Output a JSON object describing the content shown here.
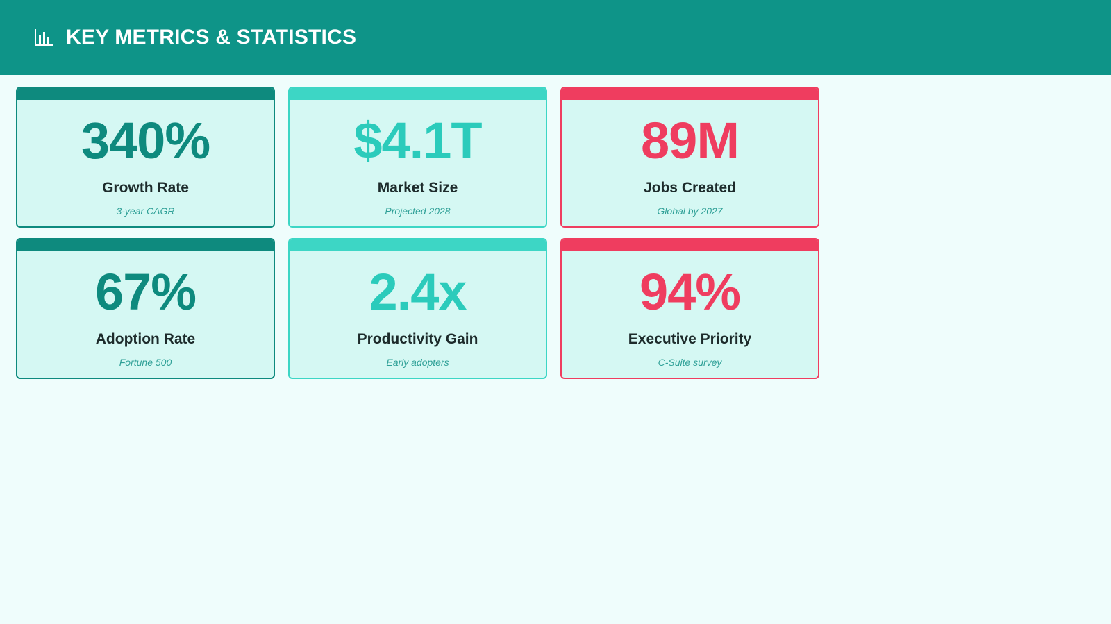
{
  "header": {
    "icon": "bar-chart-icon",
    "title": "KEY METRICS & STATISTICS"
  },
  "colors": {
    "header_bg": "#0e9488",
    "teal_dark": "#0e8a7e",
    "teal_light": "#3dd6c5",
    "red": "#ef3d5f",
    "card_bg": "#d5f8f3"
  },
  "metrics": [
    {
      "value": "340%",
      "label": "Growth Rate",
      "note": "3-year CAGR"
    },
    {
      "value": "$4.1T",
      "label": "Market Size",
      "note": "Projected 2028"
    },
    {
      "value": "89M",
      "label": "Jobs Created",
      "note": "Global by 2027"
    },
    {
      "value": "67%",
      "label": "Adoption Rate",
      "note": "Fortune 500"
    },
    {
      "value": "2.4x",
      "label": "Productivity Gain",
      "note": "Early adopters"
    },
    {
      "value": "94%",
      "label": "Executive Priority",
      "note": "C-Suite survey"
    }
  ]
}
